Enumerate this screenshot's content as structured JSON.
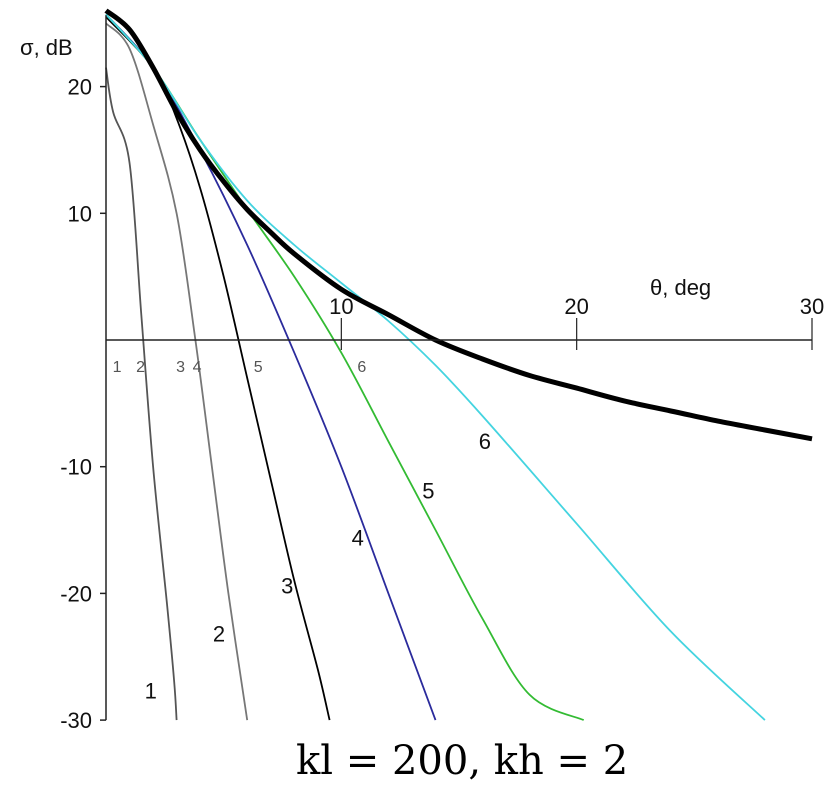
{
  "chart_data": {
    "type": "line",
    "ylabel": "σ, dB",
    "xlabel": "θ, deg",
    "xlim": [
      0,
      30
    ],
    "ylim": [
      -30,
      25
    ],
    "x_ticks": [
      {
        "value": 10,
        "label": "10"
      },
      {
        "value": 20,
        "label": "20"
      },
      {
        "value": 30,
        "label": "30"
      }
    ],
    "y_ticks": [
      {
        "value": 20,
        "label": "20"
      },
      {
        "value": 10,
        "label": "10"
      },
      {
        "value": -10,
        "label": "-10"
      },
      {
        "value": -20,
        "label": "-20"
      },
      {
        "value": -30,
        "label": "-30"
      }
    ],
    "axis_crossing_labels": [
      {
        "label": "1",
        "x": 0.3
      },
      {
        "label": "2",
        "x": 1.3
      },
      {
        "label": "3",
        "x": 3.0
      },
      {
        "label": "4",
        "x": 3.7
      },
      {
        "label": "5",
        "x": 6.3
      },
      {
        "label": "6",
        "x": 10.7
      }
    ],
    "series": [
      {
        "name": "1",
        "color": "#555555",
        "points": [
          [
            0,
            21.5
          ],
          [
            0.3,
            18
          ],
          [
            1.0,
            14
          ],
          [
            1.5,
            2
          ],
          [
            2.0,
            -10
          ],
          [
            2.6,
            -21
          ],
          [
            2.9,
            -27
          ],
          [
            3.0,
            -30
          ]
        ]
      },
      {
        "name": "2",
        "color": "#777777",
        "points": [
          [
            0,
            25
          ],
          [
            1.0,
            23
          ],
          [
            2.0,
            17
          ],
          [
            3.0,
            10
          ],
          [
            3.8,
            0
          ],
          [
            4.5,
            -10
          ],
          [
            5.2,
            -20
          ],
          [
            6.0,
            -30
          ]
        ]
      },
      {
        "name": "3",
        "color": "#000000",
        "points": [
          [
            0,
            25.5
          ],
          [
            2.0,
            21.5
          ],
          [
            3.0,
            17.5
          ],
          [
            4.0,
            12
          ],
          [
            5.0,
            5
          ],
          [
            6.0,
            -3
          ],
          [
            7.0,
            -11
          ],
          [
            8.0,
            -19
          ],
          [
            9.0,
            -26
          ],
          [
            9.5,
            -30
          ]
        ]
      },
      {
        "name": "4",
        "color": "#2b2b9c",
        "points": [
          [
            0,
            25.7
          ],
          [
            2.0,
            21.5
          ],
          [
            4.0,
            15
          ],
          [
            6.0,
            7.5
          ],
          [
            8.0,
            -1
          ],
          [
            10.0,
            -10
          ],
          [
            12.0,
            -20
          ],
          [
            14.0,
            -30
          ]
        ]
      },
      {
        "name": "5",
        "color": "#33bb33",
        "points": [
          [
            0,
            25.7
          ],
          [
            2.0,
            21.5
          ],
          [
            4.0,
            15.8
          ],
          [
            6.0,
            10.3
          ],
          [
            8.0,
            5
          ],
          [
            10.0,
            -1
          ],
          [
            12.0,
            -8
          ],
          [
            14.0,
            -15
          ],
          [
            16.0,
            -22
          ],
          [
            18.0,
            -28
          ],
          [
            20.3,
            -30
          ]
        ]
      },
      {
        "name": "6",
        "color": "#44d4e0",
        "points": [
          [
            0,
            25.7
          ],
          [
            2.0,
            21.5
          ],
          [
            4.0,
            15.8
          ],
          [
            6.0,
            11
          ],
          [
            8.0,
            7.5
          ],
          [
            10.0,
            4.5
          ],
          [
            12.0,
            1.5
          ],
          [
            14.0,
            -2
          ],
          [
            16.0,
            -6
          ],
          [
            20.0,
            -14.5
          ],
          [
            24.0,
            -23
          ],
          [
            28.0,
            -30
          ]
        ]
      },
      {
        "name": "",
        "color": "#000000",
        "bold": true,
        "points": [
          [
            0,
            26
          ],
          [
            1.0,
            24.5
          ],
          [
            2.0,
            21.5
          ],
          [
            3.0,
            18
          ],
          [
            4.0,
            15
          ],
          [
            5.0,
            12.5
          ],
          [
            6.0,
            10.3
          ],
          [
            7.0,
            8.5
          ],
          [
            8.0,
            6.8
          ],
          [
            10.0,
            4
          ],
          [
            12.0,
            2
          ],
          [
            14.0,
            0
          ],
          [
            16.0,
            -1.5
          ],
          [
            18.0,
            -2.8
          ],
          [
            20.0,
            -3.8
          ],
          [
            22.0,
            -4.8
          ],
          [
            24.0,
            -5.6
          ],
          [
            26.0,
            -6.4
          ],
          [
            28.0,
            -7.1
          ],
          [
            30.0,
            -7.8
          ]
        ]
      }
    ],
    "curve_labels": [
      {
        "label": "1",
        "x": 1.9,
        "y": -28.3
      },
      {
        "label": "2",
        "x": 4.8,
        "y": -23.8
      },
      {
        "label": "3",
        "x": 7.7,
        "y": -20.0
      },
      {
        "label": "4",
        "x": 10.7,
        "y": -16.2
      },
      {
        "label": "5",
        "x": 13.7,
        "y": -12.5
      },
      {
        "label": "6",
        "x": 16.1,
        "y": -8.6
      }
    ]
  },
  "caption": "kl  =  200, kh  =  2"
}
